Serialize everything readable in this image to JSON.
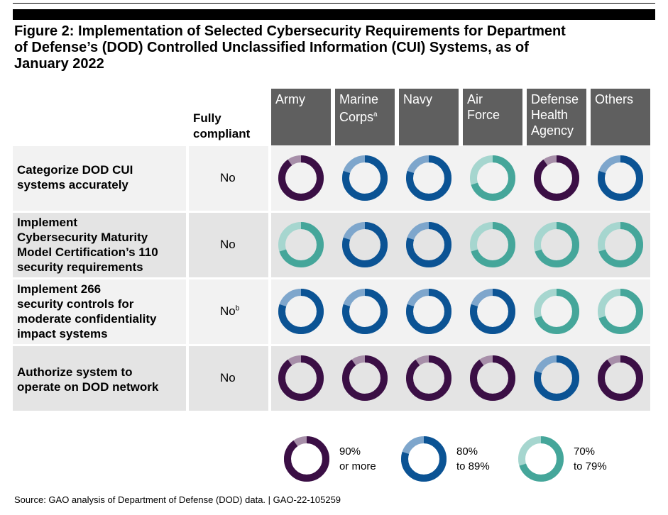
{
  "title_lines": [
    "Figure 2: Implementation of Selected Cybersecurity Requirements for Department",
    "of Defense’s (DOD) Controlled Unclassified Information (CUI) Systems, as of",
    "January 2022"
  ],
  "fully_compliant_header": [
    "Fully",
    "compliant"
  ],
  "columns": [
    {
      "lines": [
        "Army"
      ],
      "sup": ""
    },
    {
      "lines": [
        "Marine",
        "Corps"
      ],
      "sup": "a"
    },
    {
      "lines": [
        "Navy"
      ],
      "sup": ""
    },
    {
      "lines": [
        "Air",
        "Force"
      ],
      "sup": ""
    },
    {
      "lines": [
        "Defense",
        "Health",
        "Agency"
      ],
      "sup": ""
    },
    {
      "lines": [
        "Others"
      ],
      "sup": ""
    }
  ],
  "rows": [
    {
      "lines": [
        "Categorize DOD CUI",
        "systems accurately"
      ],
      "compliant": "No",
      "compliant_sup": ""
    },
    {
      "lines": [
        "Implement",
        "Cybersecurity Maturity",
        "Model Certification’s 110",
        "security requirements"
      ],
      "compliant": "No",
      "compliant_sup": ""
    },
    {
      "lines": [
        "Implement 266",
        "security controls for",
        "moderate confidentiality",
        "impact systems"
      ],
      "compliant": "No",
      "compliant_sup": "b"
    },
    {
      "lines": [
        "Authorize system to",
        "operate on DOD network"
      ],
      "compliant": "No",
      "compliant_sup": ""
    }
  ],
  "legend": [
    {
      "key": "high",
      "lines": [
        "90%",
        "or more"
      ],
      "color": "#3b0f45",
      "light": "#a78fa9",
      "level": 0.9
    },
    {
      "key": "mid",
      "lines": [
        "80%",
        "to 89%"
      ],
      "color": "#0b5394",
      "light": "#7ea6cc",
      "level": 0.8
    },
    {
      "key": "low",
      "lines": [
        "70%",
        "to 79%"
      ],
      "color": "#45a69a",
      "light": "#a6d6cf",
      "level": 0.7
    }
  ],
  "chart_data": {
    "type": "table",
    "title": "Figure 2: Implementation of Selected Cybersecurity Requirements for Department of Defense’s (DOD) Controlled Unclassified Information (CUI) Systems, as of January 2022",
    "columns": [
      "Army",
      "Marine Corps",
      "Navy",
      "Air Force",
      "Defense Health Agency",
      "Others"
    ],
    "row_labels": [
      "Categorize DOD CUI systems accurately",
      "Implement Cybersecurity Maturity Model Certification’s 110 security requirements",
      "Implement 266 security controls for moderate confidentiality impact systems",
      "Authorize system to operate on DOD network"
    ],
    "fully_compliant": [
      "No",
      "No",
      "No",
      "No"
    ],
    "categories_legend": {
      "high": "90% or more",
      "mid": "80% to 89%",
      "low": "70% to 79%"
    },
    "values": [
      [
        "high",
        "mid",
        "mid",
        "low",
        "high",
        "mid"
      ],
      [
        "low",
        "mid",
        "mid",
        "low",
        "low",
        "low"
      ],
      [
        "mid",
        "mid",
        "mid",
        "mid",
        "low",
        "low"
      ],
      [
        "high",
        "high",
        "high",
        "high",
        "mid",
        "high"
      ]
    ]
  },
  "source": "Source: GAO analysis of Department of Defense (DOD) data.  |  GAO-22-105259"
}
